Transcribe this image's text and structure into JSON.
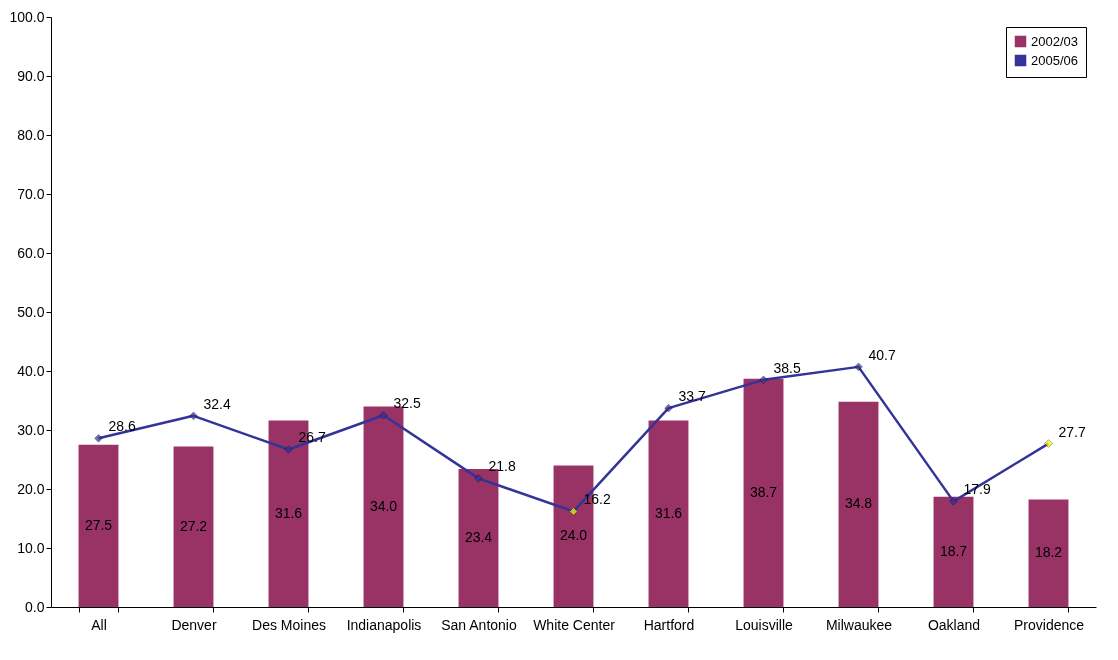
{
  "chart_data": {
    "type": "bar",
    "categories": [
      "All",
      "Denver",
      "Des Moines",
      "Indianapolis",
      "San Antonio",
      "White Center",
      "Hartford",
      "Louisville",
      "Milwaukee",
      "Oakland",
      "Providence"
    ],
    "series": [
      {
        "name": "2002/03",
        "color": "#993366",
        "values": [
          27.5,
          27.2,
          31.6,
          34.0,
          23.4,
          24.0,
          31.6,
          38.7,
          34.8,
          18.7,
          18.2
        ],
        "value_labels": [
          "27.5",
          "27.2",
          "31.6",
          "34.0",
          "23.4",
          "24.0",
          "31.6",
          "38.7",
          "34.8",
          "18.7",
          "18.2"
        ]
      },
      {
        "name": "2005/06",
        "type": "line",
        "color": "#333399",
        "colors": [
          "#333399",
          "#333399",
          "#333399",
          "#333399",
          "#333399",
          "#ffff00",
          "#333399",
          "#333399",
          "#333399",
          "#333399",
          "#ffff00"
        ],
        "values": [
          28.6,
          32.4,
          26.7,
          32.5,
          21.8,
          16.2,
          33.7,
          38.5,
          40.7,
          17.9,
          27.7
        ],
        "value_labels": [
          "28.6",
          "32.4",
          "26.7",
          "32.5",
          "21.8",
          "16.2",
          "33.7",
          "38.5",
          "40.7",
          "17.9",
          "27.7"
        ]
      }
    ],
    "ylim": [
      0,
      100
    ],
    "yticks": [
      {
        "value": 0,
        "label": "0.0"
      },
      {
        "value": 10,
        "label": "10.0"
      },
      {
        "value": 20,
        "label": "20.0"
      },
      {
        "value": 30,
        "label": "30.0"
      },
      {
        "value": 40,
        "label": "40.0"
      },
      {
        "value": 50,
        "label": "50.0"
      },
      {
        "value": 60,
        "label": "60.0"
      },
      {
        "value": 70,
        "label": "70.0"
      },
      {
        "value": 80,
        "label": "80.0"
      },
      {
        "value": 90,
        "label": "90.0"
      },
      {
        "value": 100,
        "label": "100.0"
      }
    ],
    "legend": "top right",
    "marker": "diamond",
    "grid": false
  }
}
